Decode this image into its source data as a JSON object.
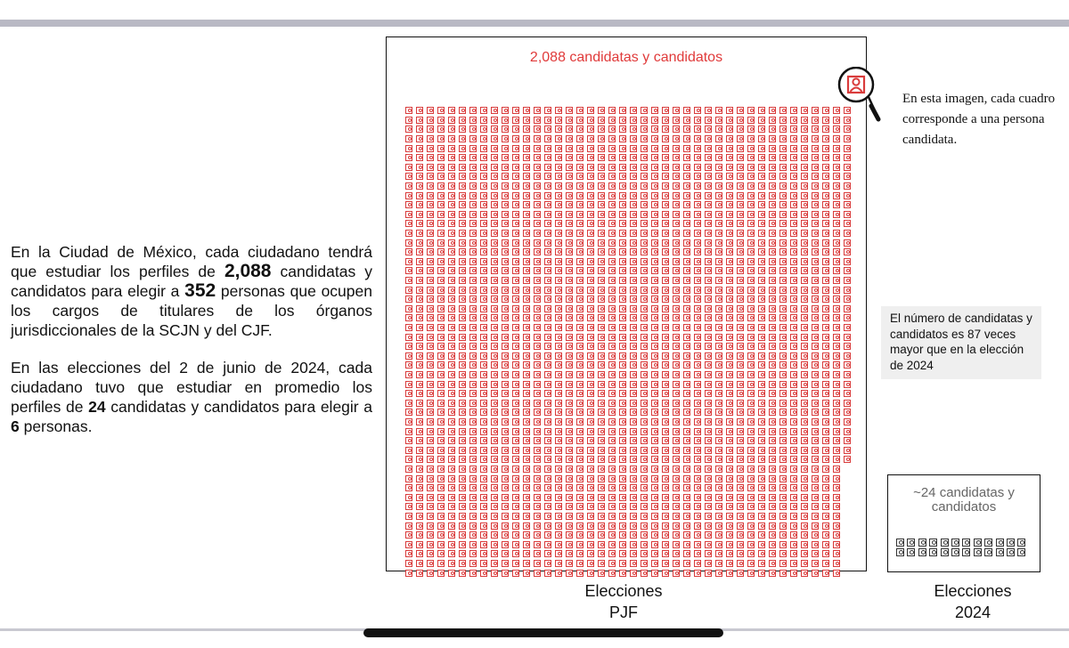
{
  "left_text": {
    "p1_a": "En la Ciudad de México, cada ciudadano tendrá que estudiar los perfiles de ",
    "p1_num1": "2,088",
    "p1_b": " candidatas y candidatos para elegir a ",
    "p1_num2": "352",
    "p1_c": " personas que ocupen los cargos de titulares de los órganos jurisdiccionales de la SCJN y del CJF.",
    "p2_a": "En las elecciones del 2 de junio de 2024, cada ciudadano tuvo que estudiar en promedio los perfiles de ",
    "p2_num1": "24",
    "p2_b": " candidatas y candidatos para elegir a ",
    "p2_num2": "6",
    "p2_c": " personas."
  },
  "pjf_panel": {
    "title": "2,088 candidatas y candidatos",
    "label_line1": "Elecciones",
    "label_line2": "PJF",
    "candidate_count": 2088,
    "icon": "person-square-icon"
  },
  "magnifier": {
    "icon": "magnifier-person-icon",
    "caption": "En esta imagen, cada cuadro corresponde a una persona candidata."
  },
  "ratio_note": "El número de candidatas y candidatos es 87 veces mayor que en la elección de 2024",
  "e2024_panel": {
    "title": "~24 candidatas y candidatos",
    "label_line1": "Elecciones",
    "label_line2": "2024",
    "candidate_count": 24
  },
  "colors": {
    "accent_red": "#e03a3a",
    "note_bg": "#efefef"
  }
}
